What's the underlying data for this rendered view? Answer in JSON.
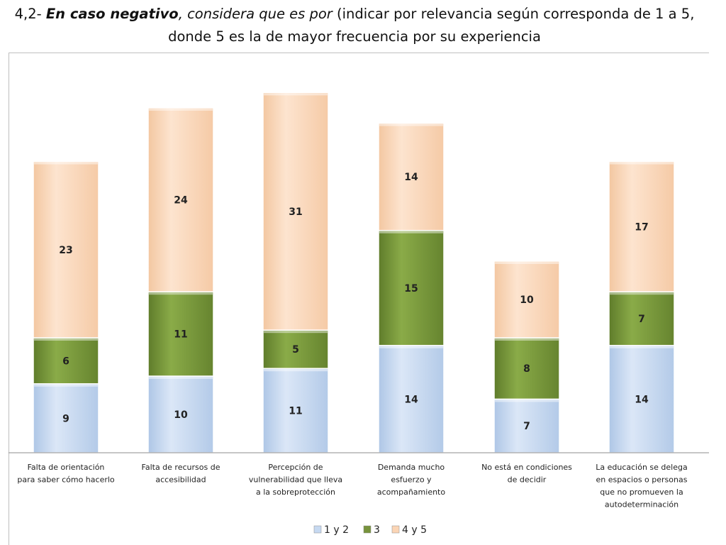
{
  "header": {
    "title_line1_prefix": "4,2- ",
    "title_line1_bold": "En caso negativo",
    "title_line1_italic": ", considera que es por",
    "title_line1_rest": " (indicar por relevancia según corresponda de 1 a 5,",
    "title_line2": "donde 5 es la de mayor frecuencia por su experiencia"
  },
  "colors": {
    "s1": "#c6d9f1",
    "s2": "#77933c",
    "s3": "#fbd5b5"
  },
  "chart_data": {
    "type": "bar",
    "stacked": true,
    "categories": [
      [
        "Falta de orientación",
        "para saber cómo hacerlo"
      ],
      [
        "Falta de recursos de",
        "accesibilidad"
      ],
      [
        "Percepción de",
        "vulnerabilidad que lleva",
        "a la sobreprotección"
      ],
      [
        "Demanda mucho",
        "esfuerzo y",
        "acompañamiento"
      ],
      [
        "No está en condiciones",
        "de decidir"
      ],
      [
        "La educación se delega",
        "en espacios o personas",
        "que no promueven la",
        "autodeterminación"
      ]
    ],
    "series": [
      {
        "name": "1 y 2",
        "values": [
          9,
          10,
          11,
          14,
          7,
          14
        ]
      },
      {
        "name": "3",
        "values": [
          6,
          11,
          5,
          15,
          8,
          7
        ]
      },
      {
        "name": "4 y 5",
        "values": [
          23,
          24,
          31,
          14,
          10,
          17
        ]
      }
    ],
    "ylim": [
      0,
      48
    ],
    "legend_position": "bottom",
    "grid": false,
    "data_labels": true
  }
}
